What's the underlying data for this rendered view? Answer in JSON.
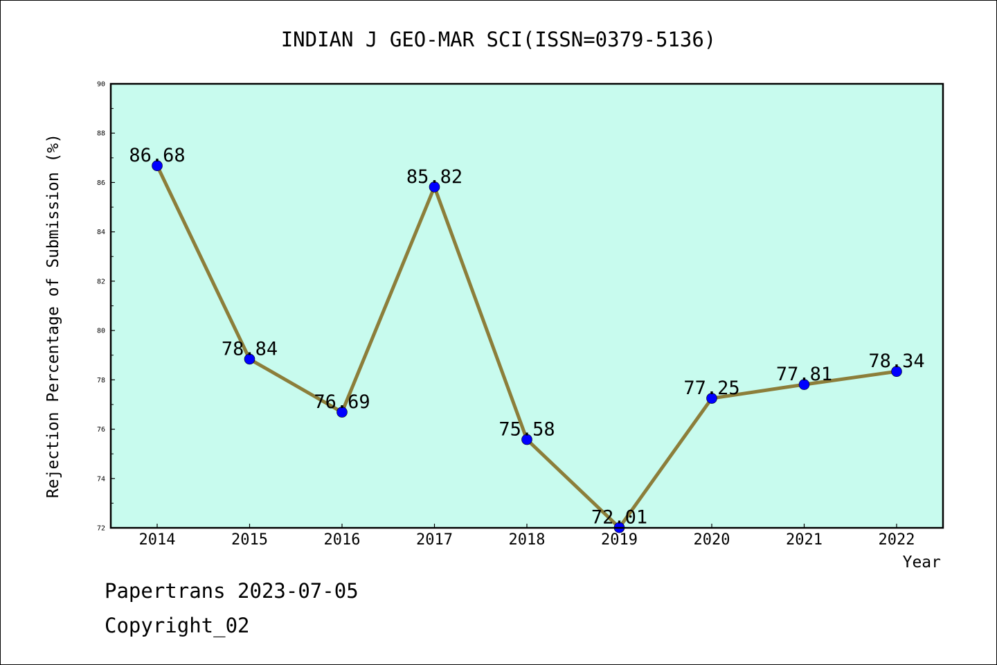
{
  "chart_data": {
    "type": "line",
    "title": "INDIAN J GEO-MAR SCI(ISSN=0379-5136)",
    "xlabel": "Year",
    "ylabel": "Rejection Percentage of Submission (%)",
    "categories": [
      "2014",
      "2015",
      "2016",
      "2017",
      "2018",
      "2019",
      "2020",
      "2021",
      "2022"
    ],
    "series": [
      {
        "values": [
          86.68,
          78.84,
          76.69,
          85.82,
          75.58,
          72.01,
          77.25,
          77.81,
          78.34
        ],
        "labels": [
          "86.68",
          "78.84",
          "76.69",
          "85.82",
          "75.58",
          "72.01",
          "77.25",
          "77.81",
          "78.34"
        ]
      }
    ],
    "ylim": [
      72,
      90
    ],
    "yticks": [
      72,
      74,
      76,
      78,
      80,
      82,
      84,
      86,
      88,
      90
    ],
    "ytick_labels": [
      "72",
      "74",
      "76",
      "78",
      "80",
      "82",
      "84",
      "86",
      "88",
      "90"
    ],
    "grid": false,
    "colors": {
      "plot_background": "#c8fbee",
      "line": "#8c7e3a",
      "marker": "#0000ff"
    }
  },
  "footer": {
    "line1": "Papertrans 2023-07-05",
    "line2": "Copyright_02"
  }
}
